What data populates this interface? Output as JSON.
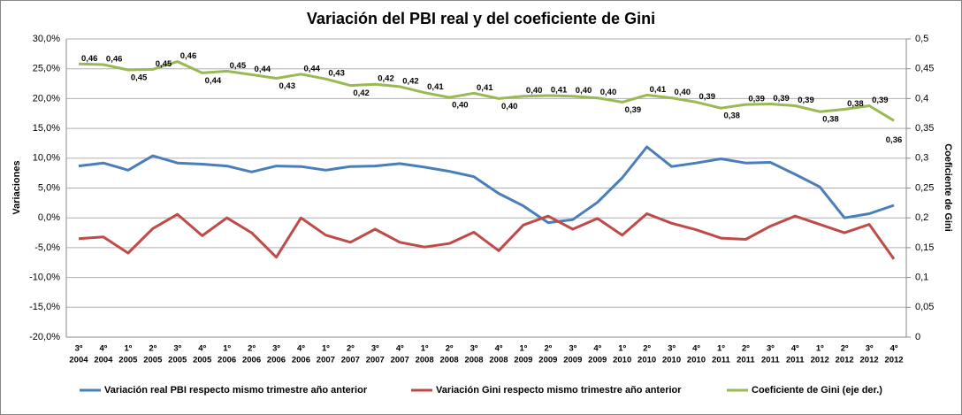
{
  "chart_data": {
    "type": "line",
    "title": "Variación  del PBI real y del coeficiente de Gini",
    "y_label": "Variaciones",
    "y2_label": "Coeficiente de Gini",
    "categories": [
      [
        "3º",
        "2004"
      ],
      [
        "4º",
        "2004"
      ],
      [
        "1º",
        "2005"
      ],
      [
        "2º",
        "2005"
      ],
      [
        "3º",
        "2005"
      ],
      [
        "4º",
        "2005"
      ],
      [
        "1º",
        "2006"
      ],
      [
        "2º",
        "2006"
      ],
      [
        "3º",
        "2006"
      ],
      [
        "4º",
        "2006"
      ],
      [
        "1º",
        "2007"
      ],
      [
        "2º",
        "2007"
      ],
      [
        "3º",
        "2007"
      ],
      [
        "4º",
        "2007"
      ],
      [
        "1º",
        "2008"
      ],
      [
        "2º",
        "2008"
      ],
      [
        "3º",
        "2008"
      ],
      [
        "4º",
        "2008"
      ],
      [
        "1º",
        "2009"
      ],
      [
        "2º",
        "2009"
      ],
      [
        "3º",
        "2009"
      ],
      [
        "4º",
        "2009"
      ],
      [
        "1º",
        "2010"
      ],
      [
        "2º",
        "2010"
      ],
      [
        "3º",
        "2010"
      ],
      [
        "4º",
        "2010"
      ],
      [
        "1º",
        "2011"
      ],
      [
        "2º",
        "2011"
      ],
      [
        "3º",
        "2011"
      ],
      [
        "4º",
        "2011"
      ],
      [
        "1º",
        "2012"
      ],
      [
        "2º",
        "2012"
      ],
      [
        "3º",
        "2012"
      ],
      [
        "4º",
        "2012"
      ]
    ],
    "ylim": [
      -20,
      30
    ],
    "yticks": [
      {
        "value": -20,
        "label": "-20,0%"
      },
      {
        "value": -15,
        "label": "-15,0%"
      },
      {
        "value": -10,
        "label": "-10,0%"
      },
      {
        "value": -5,
        "label": "-5,0%"
      },
      {
        "value": 0,
        "label": "0,0%"
      },
      {
        "value": 5,
        "label": "5,0%"
      },
      {
        "value": 10,
        "label": "10,0%"
      },
      {
        "value": 15,
        "label": "15,0%"
      },
      {
        "value": 20,
        "label": "20,0%"
      },
      {
        "value": 25,
        "label": "25,0%"
      },
      {
        "value": 30,
        "label": "30,0%"
      }
    ],
    "y2lim": [
      0,
      0.5
    ],
    "y2ticks": [
      0,
      {
        "value": 0.05,
        "label": "0,05"
      },
      {
        "value": 0.1,
        "label": "0,1"
      },
      {
        "value": 0.15,
        "label": "0,15"
      },
      {
        "value": 0.2,
        "label": "0,2"
      },
      {
        "value": 0.25,
        "label": "0,25"
      },
      {
        "value": 0.3,
        "label": "0,3"
      },
      {
        "value": 0.35,
        "label": "0,35"
      },
      {
        "value": 0.4,
        "label": "0,4"
      },
      {
        "value": 0.45,
        "label": "0,45"
      },
      {
        "value": 0.5,
        "label": "0,5"
      }
    ],
    "grid": true,
    "legend": "bottom",
    "series": [
      {
        "name": "Variación real PBI respecto mismo trimestre año anterior",
        "color": "#4a7ebb",
        "values": [
          8.7,
          9.2,
          8.0,
          10.4,
          9.2,
          9.0,
          8.7,
          7.7,
          8.7,
          8.6,
          8.0,
          8.6,
          8.7,
          9.1,
          8.5,
          7.8,
          6.9,
          4.1,
          2.0,
          -0.8,
          -0.3,
          2.6,
          6.7,
          11.9,
          8.6,
          9.2,
          9.9,
          9.2,
          9.3,
          7.3,
          5.2,
          0.0,
          0.7,
          2.1
        ]
      },
      {
        "name": "Variación Gini respecto mismo trimestre año anterior",
        "color": "#be4b48",
        "values": [
          -3.5,
          -3.2,
          -5.9,
          -1.8,
          0.6,
          -3.0,
          0.0,
          -2.5,
          -6.6,
          0.0,
          -2.9,
          -4.1,
          -1.9,
          -4.1,
          -4.9,
          -4.3,
          -2.4,
          -5.5,
          -1.2,
          0.3,
          -1.9,
          -0.1,
          -2.9,
          0.7,
          -0.9,
          -2.0,
          -3.4,
          -3.6,
          -1.4,
          0.3,
          -1.1,
          -2.5,
          -1.1,
          -6.9
        ]
      },
      {
        "name": "Coeficiente de Gini (eje der.)",
        "color": "#98b954",
        "axis": "y2",
        "values": [
          0.458,
          0.457,
          0.448,
          0.449,
          0.462,
          0.443,
          0.446,
          0.44,
          0.434,
          0.441,
          0.433,
          0.422,
          0.424,
          0.42,
          0.41,
          0.402,
          0.409,
          0.4,
          0.404,
          0.405,
          0.404,
          0.401,
          0.394,
          0.406,
          0.401,
          0.394,
          0.384,
          0.39,
          0.391,
          0.388,
          0.378,
          0.382,
          0.388,
          0.363
        ],
        "value_labels": [
          "0,46",
          "0,46",
          "0,45",
          "0,45",
          "0,46",
          "0,44",
          "0,45",
          "0,44",
          "0,43",
          "0,44",
          "0,43",
          "0,42",
          "0,42",
          "0,42",
          "0,41",
          "0,40",
          "0,41",
          "0,40",
          "0,40",
          "0,41",
          "0,40",
          "0,40",
          "0,39",
          "0,41",
          "0,40",
          "0,39",
          "0,38",
          "0,39",
          "0,39",
          "0,39",
          "0,38",
          "0,38",
          "0,39",
          "0,36"
        ]
      }
    ]
  }
}
